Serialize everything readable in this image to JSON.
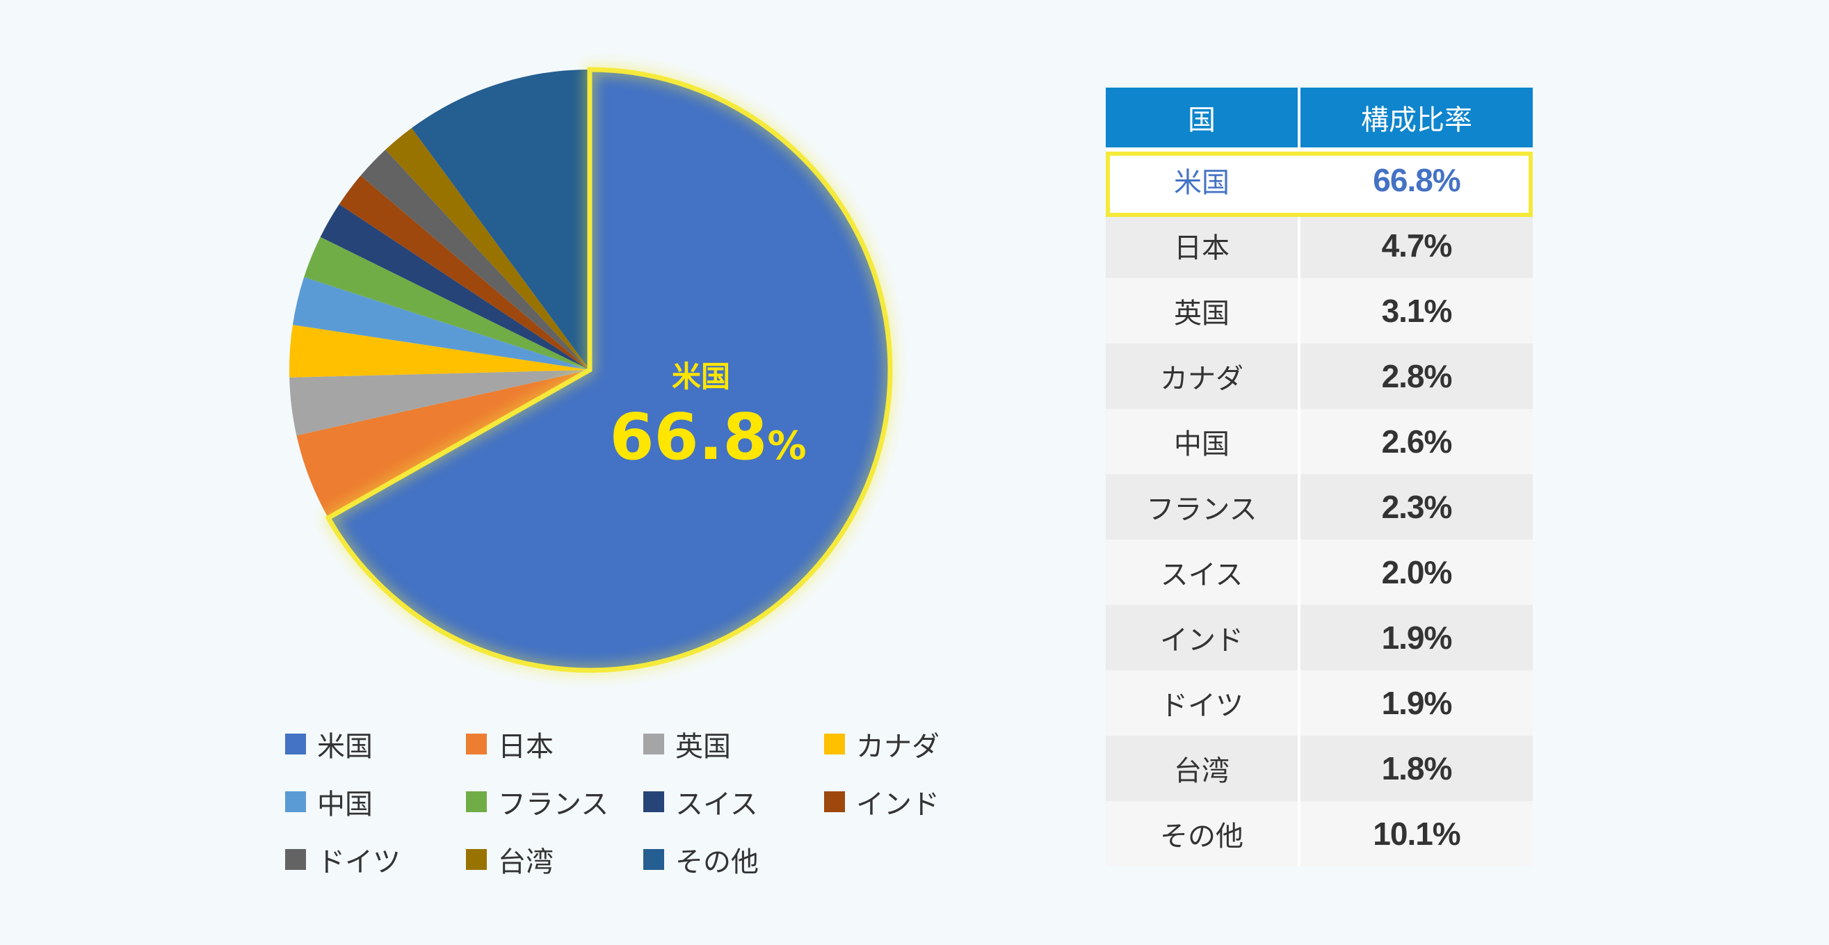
{
  "chart_data": {
    "type": "pie",
    "categories": [
      "米国",
      "日本",
      "英国",
      "カナダ",
      "中国",
      "フランス",
      "スイス",
      "インド",
      "ドイツ",
      "台湾",
      "その他"
    ],
    "values": [
      66.8,
      4.7,
      3.1,
      2.8,
      2.6,
      2.3,
      2.0,
      1.9,
      1.9,
      1.8,
      10.1
    ],
    "colors": [
      "#4472c4",
      "#ed7d31",
      "#a5a5a5",
      "#ffc000",
      "#5b9bd5",
      "#70ad47",
      "#264478",
      "#9e480e",
      "#636363",
      "#997300",
      "#255e91"
    ],
    "highlight": {
      "label": "米国",
      "value_text": "66.8",
      "unit": "%",
      "border_color": "#f5ea3a"
    },
    "legend_placement": "bottom"
  },
  "table": {
    "headers": [
      "国",
      "構成比率"
    ],
    "rows": [
      {
        "country": "米国",
        "value": "66.8%"
      },
      {
        "country": "日本",
        "value": "4.7%"
      },
      {
        "country": "英国",
        "value": "3.1%"
      },
      {
        "country": "カナダ",
        "value": "2.8%"
      },
      {
        "country": "中国",
        "value": "2.6%"
      },
      {
        "country": "フランス",
        "value": "2.3%"
      },
      {
        "country": "スイス",
        "value": "2.0%"
      },
      {
        "country": "インド",
        "value": "1.9%"
      },
      {
        "country": "ドイツ",
        "value": "1.9%"
      },
      {
        "country": "台湾",
        "value": "1.8%"
      },
      {
        "country": "その他",
        "value": "10.1%"
      }
    ],
    "header_color": "#0e85cc",
    "highlight_text_color": "#4472c4"
  }
}
